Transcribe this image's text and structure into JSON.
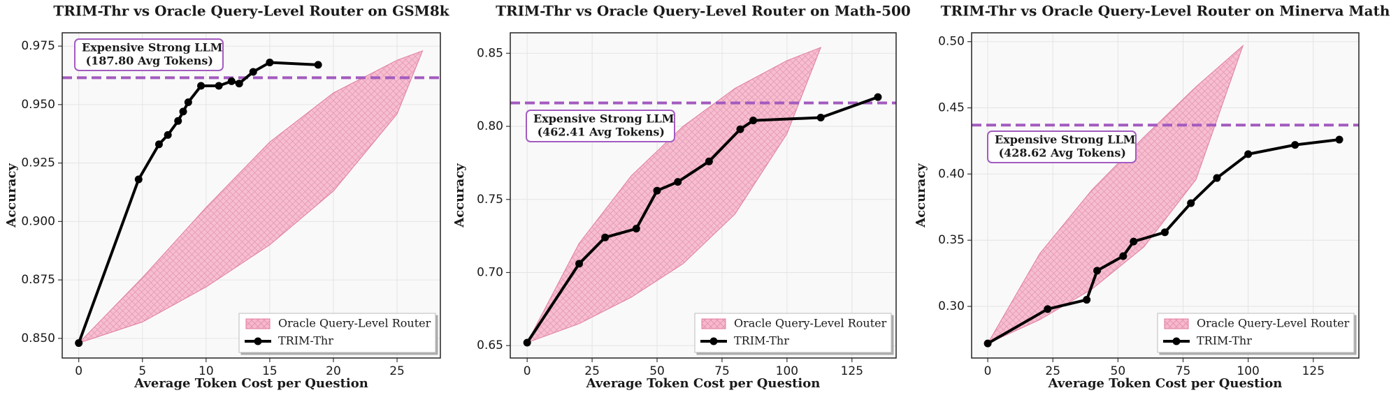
{
  "chart_data": [
    {
      "type": "line",
      "title": "TRIM-Thr vs Oracle Query-Level Router on GSM8k",
      "xlabel": "Average Token Cost per Question",
      "ylabel": "Accuracy",
      "xlim": [
        -1.3,
        28.4
      ],
      "ylim": [
        0.8416,
        0.9807
      ],
      "xticks": [
        0,
        5,
        10,
        15,
        20,
        25
      ],
      "yticks": [
        {
          "value": 0.85,
          "label": "0.850"
        },
        0.875,
        {
          "value": 0.9,
          "label": "0.900"
        },
        0.925,
        {
          "value": 0.95,
          "label": "0.950"
        },
        0.975
      ],
      "grid": true,
      "legend": "lower right",
      "reference_line": {
        "y": 0.9615,
        "color": "#a35bbf"
      },
      "annotation": [
        "Expensive Strong LLM",
        "(187.80 Avg Tokens)"
      ],
      "series": [
        {
          "name": "Oracle Query-Level Router",
          "color": "#f4a6c0",
          "x": [
            0,
            5,
            10,
            15,
            20,
            25,
            27
          ],
          "upper": [
            0.848,
            0.876,
            0.906,
            0.934,
            0.955,
            0.969,
            0.973
          ],
          "lower": [
            0.848,
            0.857,
            0.872,
            0.89,
            0.913,
            0.946,
            0.973
          ]
        },
        {
          "name": "TRIM-Thr",
          "color": "#000000",
          "x": [
            0,
            4.7,
            6.3,
            7.0,
            7.8,
            8.2,
            8.6,
            9.6,
            11,
            12,
            12.6,
            13.7,
            15,
            18.8
          ],
          "values": [
            0.848,
            0.918,
            0.933,
            0.937,
            0.943,
            0.947,
            0.951,
            0.958,
            0.958,
            0.96,
            0.959,
            0.964,
            0.968,
            0.967
          ]
        }
      ]
    },
    {
      "type": "line",
      "title": "TRIM-Thr vs Oracle Query-Level Router on Math-500",
      "xlabel": "Average Token Cost per Question",
      "ylabel": "Accuracy",
      "xlim": [
        -6.5,
        142
      ],
      "ylim": [
        0.6415,
        0.864
      ],
      "xticks": [
        0,
        25,
        50,
        75,
        100,
        125
      ],
      "yticks": [
        0.65,
        {
          "value": 0.7,
          "label": "0.70"
        },
        0.75,
        {
          "value": 0.8,
          "label": "0.80"
        },
        0.85
      ],
      "grid": true,
      "legend": "lower right",
      "reference_line": {
        "y": 0.816,
        "color": "#a35bbf"
      },
      "annotation": [
        "Expensive Strong LLM",
        "(462.41 Avg Tokens)"
      ],
      "series": [
        {
          "name": "Oracle Query-Level Router",
          "color": "#f4a6c0",
          "x": [
            0,
            20,
            40,
            60,
            80,
            100,
            113
          ],
          "upper": [
            0.652,
            0.72,
            0.766,
            0.8,
            0.826,
            0.845,
            0.854
          ],
          "lower": [
            0.652,
            0.665,
            0.683,
            0.706,
            0.74,
            0.795,
            0.854
          ]
        },
        {
          "name": "TRIM-Thr",
          "color": "#000000",
          "x": [
            0,
            20,
            30,
            42,
            50,
            58,
            70,
            82,
            87,
            113,
            135
          ],
          "values": [
            0.652,
            0.706,
            0.724,
            0.73,
            0.756,
            0.762,
            0.776,
            0.798,
            0.804,
            0.806,
            0.82
          ]
        }
      ]
    },
    {
      "type": "line",
      "title": "TRIM-Thr vs Oracle Query-Level Router on Minerva Math",
      "xlabel": "Average Token Cost per Question",
      "ylabel": "Accuracy",
      "xlim": [
        -6.2,
        142.5
      ],
      "ylim": [
        0.261,
        0.5067
      ],
      "xticks": [
        0,
        25,
        50,
        75,
        100,
        125
      ],
      "yticks": [
        {
          "value": 0.3,
          "label": "0.30"
        },
        0.35,
        {
          "value": 0.4,
          "label": "0.40"
        },
        0.45,
        {
          "value": 0.5,
          "label": "0.50"
        }
      ],
      "grid": true,
      "legend": "lower right",
      "reference_line": {
        "y": 0.437,
        "color": "#a35bbf"
      },
      "annotation": [
        "Expensive Strong LLM",
        "(428.62 Avg Tokens)"
      ],
      "series": [
        {
          "name": "Oracle Query-Level Router",
          "color": "#f4a6c0",
          "x": [
            0,
            20,
            40,
            60,
            80,
            98
          ],
          "upper": [
            0.272,
            0.34,
            0.388,
            0.428,
            0.466,
            0.497
          ],
          "lower": [
            0.272,
            0.29,
            0.313,
            0.345,
            0.396,
            0.497
          ]
        },
        {
          "name": "TRIM-Thr",
          "color": "#000000",
          "x": [
            0,
            23,
            38,
            42,
            52,
            56,
            68,
            78,
            88,
            100,
            118,
            135
          ],
          "values": [
            0.272,
            0.298,
            0.305,
            0.327,
            0.338,
            0.349,
            0.356,
            0.378,
            0.397,
            0.415,
            0.422,
            0.426
          ]
        }
      ]
    }
  ]
}
